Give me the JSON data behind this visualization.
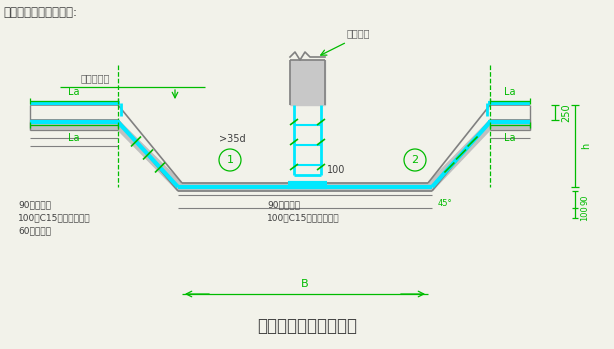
{
  "bg_color": "#f2f2ea",
  "gc": "#808080",
  "cc": "#00e8ff",
  "grn": "#00bb00",
  "dk": "#404040",
  "title": "独基与防潮板交接大样",
  "top_label": "独立基础与防水板连接:",
  "shui_di_ban": "详防水底板",
  "tong_zhu": "同柱配筋",
  "la_lt": "La",
  "la_lb": "La",
  "la_rt": "La",
  "la_rb": "La",
  "dim_35d": ">35d",
  "dim_100": "100",
  "circle1": "1",
  "circle2": "2",
  "left_note1": "90厚防水层",
  "left_note2": "100厚C15素混凝土垫层",
  "left_note3": "60厚聚苯板",
  "right_note1": "90厚防水层",
  "right_note2": "100厚C15素混凝土垫层",
  "dim_250": "250",
  "dim_h": "h",
  "dim_90": "90",
  "dim_100b": "100",
  "dim_B": "B",
  "note_45": "45°"
}
